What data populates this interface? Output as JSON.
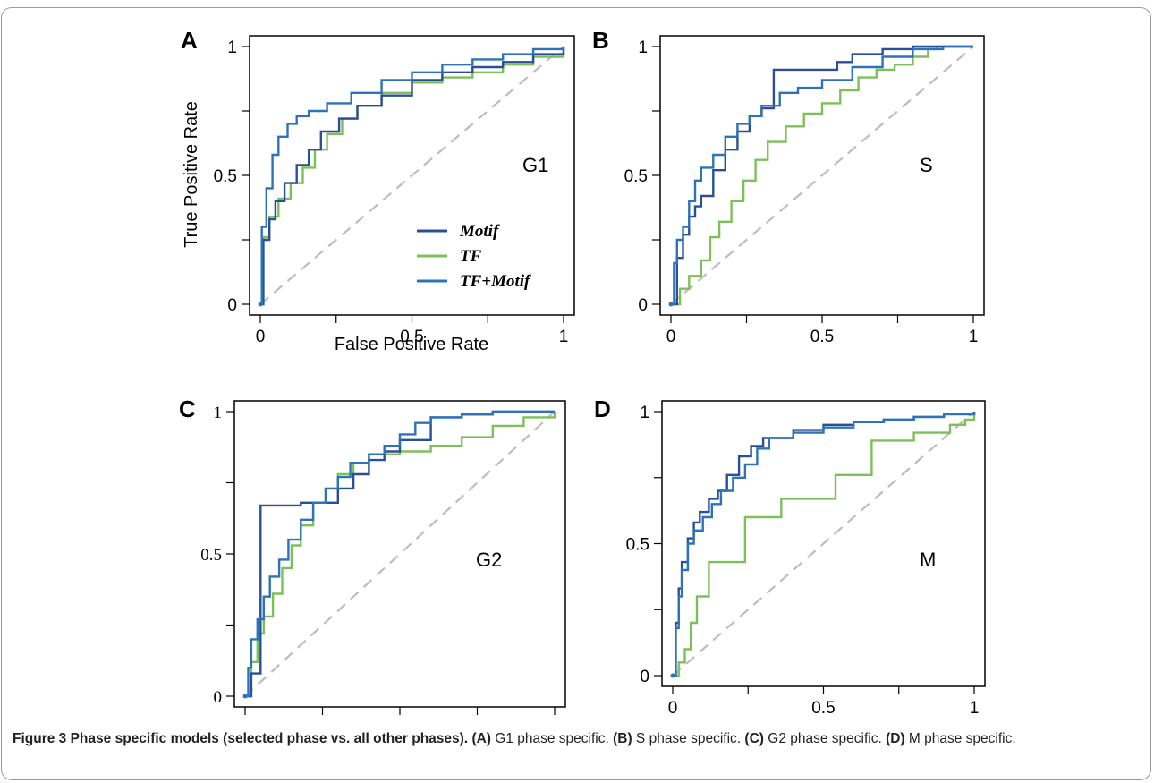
{
  "figure": {
    "colors": {
      "motif": "#2b4f96",
      "tf": "#7dc05a",
      "tfmotif": "#2d73b9",
      "diagonal": "#bdbdbd",
      "axis": "#000000"
    },
    "legend": {
      "motif": "Motif",
      "tf": "TF",
      "tfmotif": "TF+Motif"
    },
    "xlabel": "False Positive Rate",
    "ylabel": "True Positive Rate"
  },
  "caption": {
    "title": "Figure 3 Phase specific models (selected phase vs. all other phases).",
    "a_tag": "(A)",
    "a_text": " G1 phase specific. ",
    "b_tag": "(B)",
    "b_text": " S phase specific. ",
    "c_tag": "(C)",
    "c_text": " G2 phase specific. ",
    "d_tag": "(D)",
    "d_text": " M phase specific."
  },
  "chart_data": [
    {
      "type": "line",
      "panel": "A",
      "phase_label": "G1",
      "xlabel": "False Positive Rate",
      "ylabel": "True Positive Rate",
      "xlim": [
        0,
        1
      ],
      "ylim": [
        0,
        1
      ],
      "x_ticks": [
        "0",
        "0.5",
        "1"
      ],
      "y_ticks": [
        "0",
        "0.5",
        "1"
      ],
      "legend_position": "center-right",
      "series": [
        {
          "name": "Motif",
          "x": [
            0,
            0.01,
            0.03,
            0.05,
            0.08,
            0.12,
            0.16,
            0.2,
            0.26,
            0.32,
            0.4,
            0.5,
            0.6,
            0.7,
            0.8,
            0.9,
            1
          ],
          "y": [
            0,
            0.25,
            0.33,
            0.4,
            0.47,
            0.54,
            0.6,
            0.67,
            0.72,
            0.77,
            0.81,
            0.87,
            0.9,
            0.92,
            0.94,
            0.97,
            1
          ]
        },
        {
          "name": "TF",
          "x": [
            0,
            0.01,
            0.03,
            0.06,
            0.1,
            0.14,
            0.18,
            0.22,
            0.27,
            0.32,
            0.4,
            0.5,
            0.6,
            0.7,
            0.8,
            0.9,
            1
          ],
          "y": [
            0,
            0.26,
            0.34,
            0.41,
            0.47,
            0.53,
            0.6,
            0.66,
            0.72,
            0.77,
            0.82,
            0.86,
            0.88,
            0.9,
            0.93,
            0.96,
            1
          ]
        },
        {
          "name": "TF+Motif",
          "x": [
            0,
            0.005,
            0.02,
            0.04,
            0.06,
            0.09,
            0.12,
            0.16,
            0.22,
            0.3,
            0.4,
            0.5,
            0.6,
            0.7,
            0.8,
            0.9,
            1
          ],
          "y": [
            0,
            0.3,
            0.45,
            0.58,
            0.65,
            0.7,
            0.73,
            0.75,
            0.78,
            0.82,
            0.87,
            0.9,
            0.93,
            0.95,
            0.97,
            0.99,
            1
          ]
        }
      ]
    },
    {
      "type": "line",
      "panel": "B",
      "phase_label": "S",
      "xlim": [
        0,
        1
      ],
      "ylim": [
        0,
        1
      ],
      "x_ticks": [
        "0",
        "0.5",
        "1"
      ],
      "y_ticks": [
        "0",
        "0.5",
        "1"
      ],
      "series": [
        {
          "name": "Motif",
          "x": [
            0,
            0.02,
            0.04,
            0.06,
            0.08,
            0.1,
            0.14,
            0.18,
            0.22,
            0.26,
            0.3,
            0.34,
            0.34,
            0.4,
            0.46,
            0.55,
            0.6,
            0.7,
            0.8,
            0.9,
            1
          ],
          "y": [
            0,
            0.18,
            0.27,
            0.34,
            0.38,
            0.42,
            0.52,
            0.6,
            0.67,
            0.73,
            0.76,
            0.8,
            0.91,
            0.91,
            0.91,
            0.94,
            0.97,
            0.99,
            1,
            1,
            1
          ]
        },
        {
          "name": "TF",
          "x": [
            0,
            0.03,
            0.06,
            0.1,
            0.13,
            0.16,
            0.2,
            0.24,
            0.28,
            0.32,
            0.38,
            0.44,
            0.5,
            0.56,
            0.62,
            0.68,
            0.74,
            0.8,
            0.85,
            0.88,
            1
          ],
          "y": [
            0,
            0.06,
            0.11,
            0.17,
            0.26,
            0.32,
            0.4,
            0.48,
            0.56,
            0.63,
            0.69,
            0.74,
            0.78,
            0.83,
            0.88,
            0.91,
            0.93,
            0.96,
            0.99,
            1,
            1
          ]
        },
        {
          "name": "TF+Motif",
          "x": [
            0,
            0.01,
            0.02,
            0.04,
            0.06,
            0.08,
            0.1,
            0.14,
            0.18,
            0.22,
            0.26,
            0.3,
            0.36,
            0.42,
            0.5,
            0.6,
            0.7,
            0.8,
            0.9,
            1
          ],
          "y": [
            0,
            0.16,
            0.25,
            0.3,
            0.4,
            0.48,
            0.53,
            0.58,
            0.65,
            0.7,
            0.73,
            0.77,
            0.82,
            0.84,
            0.87,
            0.92,
            0.96,
            0.99,
            1,
            1
          ]
        }
      ]
    },
    {
      "type": "line",
      "panel": "C",
      "phase_label": "G2",
      "xlim": [
        0,
        1
      ],
      "ylim": [
        0,
        1
      ],
      "x_ticks": [
        "0",
        "0.5",
        "1"
      ],
      "y_ticks": [
        "0",
        "0.5",
        "1"
      ],
      "series": [
        {
          "name": "Motif",
          "x": [
            0,
            0.02,
            0.02,
            0.05,
            0.05,
            0.18,
            0.18,
            0.26,
            0.3,
            0.35,
            0.4,
            0.45,
            0.5,
            0.6,
            0.7,
            0.8,
            0.9,
            1
          ],
          "y": [
            0,
            0.08,
            0.08,
            0.08,
            0.67,
            0.67,
            0.68,
            0.68,
            0.73,
            0.78,
            0.83,
            0.86,
            0.9,
            0.98,
            0.99,
            1,
            1,
            1
          ]
        },
        {
          "name": "TF",
          "x": [
            0,
            0.02,
            0.04,
            0.06,
            0.09,
            0.12,
            0.15,
            0.18,
            0.22,
            0.26,
            0.3,
            0.35,
            0.4,
            0.5,
            0.6,
            0.7,
            0.8,
            0.9,
            1
          ],
          "y": [
            0,
            0.12,
            0.22,
            0.28,
            0.36,
            0.45,
            0.53,
            0.6,
            0.68,
            0.73,
            0.78,
            0.82,
            0.85,
            0.86,
            0.88,
            0.91,
            0.95,
            0.98,
            1
          ]
        },
        {
          "name": "TF+Motif",
          "x": [
            0,
            0.01,
            0.02,
            0.04,
            0.06,
            0.08,
            0.11,
            0.14,
            0.18,
            0.22,
            0.26,
            0.3,
            0.34,
            0.4,
            0.45,
            0.5,
            0.55,
            0.6,
            0.7,
            0.8,
            0.9,
            1
          ],
          "y": [
            0,
            0.1,
            0.2,
            0.27,
            0.35,
            0.42,
            0.48,
            0.55,
            0.62,
            0.68,
            0.73,
            0.77,
            0.82,
            0.85,
            0.88,
            0.92,
            0.96,
            0.98,
            0.99,
            1,
            1,
            1
          ]
        }
      ]
    },
    {
      "type": "line",
      "panel": "D",
      "phase_label": "M",
      "xlim": [
        0,
        1
      ],
      "ylim": [
        0,
        1
      ],
      "x_ticks": [
        "0",
        "0.5",
        "1"
      ],
      "y_ticks": [
        "0",
        "0.5",
        "1"
      ],
      "series": [
        {
          "name": "Motif",
          "x": [
            0,
            0.01,
            0.02,
            0.03,
            0.05,
            0.07,
            0.09,
            0.12,
            0.15,
            0.18,
            0.22,
            0.26,
            0.3,
            0.4,
            0.5,
            0.6,
            0.7,
            0.8,
            0.9,
            1
          ],
          "y": [
            0,
            0.2,
            0.33,
            0.43,
            0.52,
            0.58,
            0.62,
            0.67,
            0.7,
            0.76,
            0.83,
            0.87,
            0.9,
            0.93,
            0.95,
            0.96,
            0.97,
            0.98,
            0.99,
            1
          ]
        },
        {
          "name": "TF",
          "x": [
            0,
            0.02,
            0.04,
            0.06,
            0.08,
            0.12,
            0.12,
            0.24,
            0.24,
            0.36,
            0.36,
            0.54,
            0.54,
            0.66,
            0.66,
            0.8,
            0.92,
            0.97,
            1
          ],
          "y": [
            0,
            0.05,
            0.1,
            0.2,
            0.3,
            0.35,
            0.43,
            0.43,
            0.6,
            0.6,
            0.67,
            0.67,
            0.76,
            0.76,
            0.89,
            0.92,
            0.95,
            0.97,
            1
          ]
        },
        {
          "name": "TF+Motif",
          "x": [
            0,
            0.01,
            0.02,
            0.03,
            0.05,
            0.07,
            0.1,
            0.13,
            0.16,
            0.2,
            0.24,
            0.28,
            0.32,
            0.4,
            0.5,
            0.6,
            0.7,
            0.8,
            0.9,
            1
          ],
          "y": [
            0,
            0.18,
            0.3,
            0.4,
            0.5,
            0.55,
            0.6,
            0.65,
            0.7,
            0.75,
            0.8,
            0.86,
            0.9,
            0.92,
            0.94,
            0.96,
            0.97,
            0.98,
            0.99,
            1
          ]
        }
      ]
    }
  ]
}
